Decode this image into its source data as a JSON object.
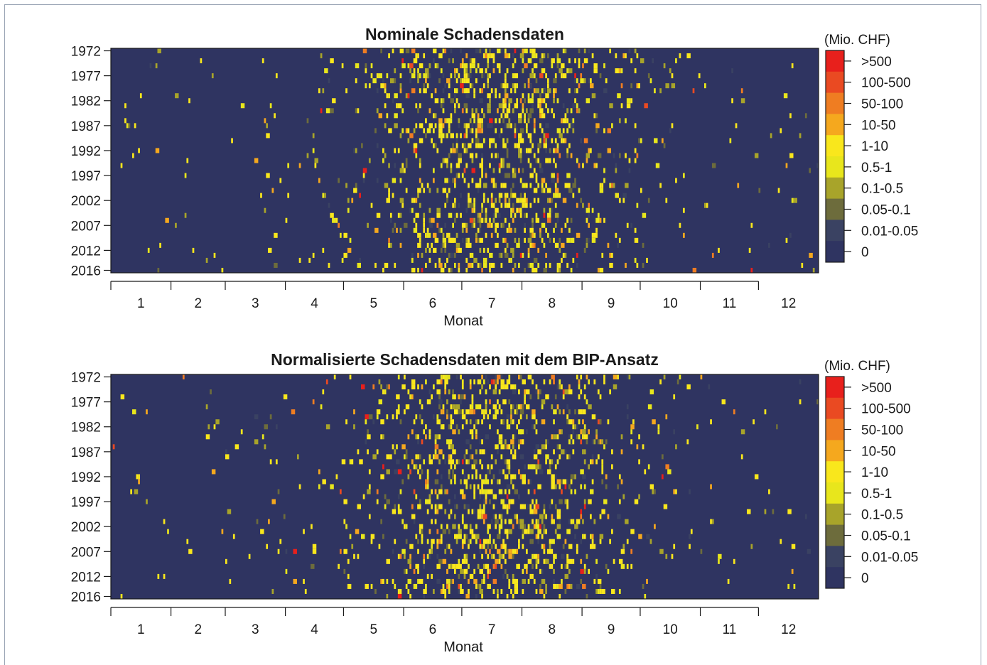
{
  "chart_data": [
    {
      "type": "heatmap",
      "title": "Nominale Schadensdaten",
      "xlabel": "Monat",
      "ylabel": "",
      "x_ticks": [
        "1",
        "2",
        "3",
        "4",
        "5",
        "6",
        "7",
        "8",
        "9",
        "10",
        "11",
        "12"
      ],
      "y_ticks": [
        "1972",
        "1977",
        "1982",
        "1987",
        "1992",
        "1997",
        "2002",
        "2007",
        "2012",
        "2016"
      ],
      "year_range": [
        1972,
        2016
      ],
      "legend": {
        "title": "(Mio. CHF)",
        "placement": "right",
        "categories": [
          ">500",
          "100-500",
          "50-100",
          "10-50",
          "1-10",
          "0.5-1",
          "0.1-0.5",
          "0.05-0.1",
          "0.01-0.05",
          "0"
        ],
        "colors": [
          "#e8201c",
          "#ea4a22",
          "#ef7d22",
          "#f5a81e",
          "#f9e71c",
          "#e8e61c",
          "#a8a42a",
          "#6d6c3c",
          "#3a4262",
          "#2f3461"
        ]
      },
      "seed": 17
    },
    {
      "type": "heatmap",
      "title": "Normalisierte Schadensdaten mit dem BIP-Ansatz",
      "xlabel": "Monat",
      "ylabel": "",
      "x_ticks": [
        "1",
        "2",
        "3",
        "4",
        "5",
        "6",
        "7",
        "8",
        "9",
        "10",
        "11",
        "12"
      ],
      "y_ticks": [
        "1972",
        "1977",
        "1982",
        "1987",
        "1992",
        "1997",
        "2002",
        "2007",
        "2012",
        "2016"
      ],
      "year_range": [
        1972,
        2016
      ],
      "legend": {
        "title": "(Mio. CHF)",
        "placement": "right",
        "categories": [
          ">500",
          "100-500",
          "50-100",
          "10-50",
          "1-10",
          "0.5-1",
          "0.1-0.5",
          "0.05-0.1",
          "0.01-0.05",
          "0"
        ],
        "colors": [
          "#e8201c",
          "#ea4a22",
          "#ef7d22",
          "#f5a81e",
          "#f9e71c",
          "#e8e61c",
          "#a8a42a",
          "#6d6c3c",
          "#3a4262",
          "#2f3461"
        ]
      },
      "seed": 29
    }
  ]
}
